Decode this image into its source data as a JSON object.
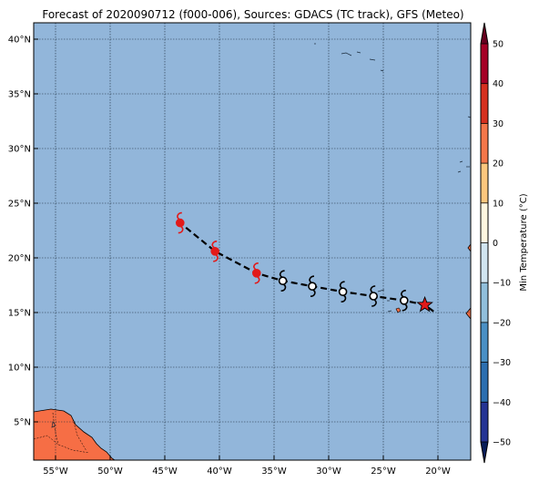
{
  "title": "Forecast of 2020090712 (f000-006), Sources: GDACS (TC track), GFS (Meteo)",
  "map": {
    "lon_range": [
      -57,
      -17
    ],
    "lat_range": [
      1.5,
      41.5
    ],
    "lon_ticks": [
      {
        "value": -55,
        "label": "55°W"
      },
      {
        "value": -50,
        "label": "50°W"
      },
      {
        "value": -45,
        "label": "45°W"
      },
      {
        "value": -40,
        "label": "40°W"
      },
      {
        "value": -35,
        "label": "35°W"
      },
      {
        "value": -30,
        "label": "30°W"
      },
      {
        "value": -25,
        "label": "25°W"
      },
      {
        "value": -20,
        "label": "20°W"
      }
    ],
    "lat_ticks": [
      {
        "value": 5,
        "label": "5°N"
      },
      {
        "value": 10,
        "label": "10°N"
      },
      {
        "value": 15,
        "label": "15°N"
      },
      {
        "value": 20,
        "label": "20°N"
      },
      {
        "value": 25,
        "label": "25°N"
      },
      {
        "value": 30,
        "label": "30°N"
      },
      {
        "value": 35,
        "label": "35°N"
      },
      {
        "value": 40,
        "label": "40°N"
      }
    ],
    "grid": true,
    "ocean_color": "#92b6da",
    "land_color": "#f66e45",
    "track": {
      "line_style": "dashed",
      "points": [
        {
          "lon": -20.4,
          "lat": 15.1
        },
        {
          "lon": -21.2,
          "lat": 15.7,
          "symbol": "star",
          "color": "#e21a1a"
        },
        {
          "lon": -23.1,
          "lat": 16.1,
          "symbol": "depression",
          "color": "#000000"
        },
        {
          "lon": -25.9,
          "lat": 16.5,
          "symbol": "depression",
          "color": "#000000"
        },
        {
          "lon": -28.7,
          "lat": 16.9,
          "symbol": "depression",
          "color": "#000000"
        },
        {
          "lon": -31.5,
          "lat": 17.4,
          "symbol": "depression",
          "color": "#000000"
        },
        {
          "lon": -34.2,
          "lat": 17.9,
          "symbol": "depression",
          "color": "#000000"
        },
        {
          "lon": -36.6,
          "lat": 18.6,
          "symbol": "storm",
          "color": "#e21a1a"
        },
        {
          "lon": -40.4,
          "lat": 20.6,
          "symbol": "storm",
          "color": "#e21a1a"
        },
        {
          "lon": -43.6,
          "lat": 23.2,
          "symbol": "storm",
          "color": "#e21a1a"
        }
      ]
    }
  },
  "colorbar": {
    "label": "Min Temperature (°C)",
    "min": -55,
    "max": 55,
    "tick_values": [
      -50,
      -40,
      -30,
      -20,
      -10,
      0,
      10,
      20,
      30,
      40,
      50
    ],
    "tick_labels": [
      "−50",
      "−40",
      "−30",
      "−20",
      "−10",
      "0",
      "10",
      "20",
      "30",
      "40",
      "50"
    ],
    "segments": [
      {
        "from": -55,
        "to": -50,
        "color": "#081d58"
      },
      {
        "from": -50,
        "to": -40,
        "color": "#253494"
      },
      {
        "from": -40,
        "to": -30,
        "color": "#2c6fb0"
      },
      {
        "from": -30,
        "to": -20,
        "color": "#4a90c5"
      },
      {
        "from": -20,
        "to": -10,
        "color": "#91bfdb"
      },
      {
        "from": -10,
        "to": 0,
        "color": "#d1e5f0"
      },
      {
        "from": 0,
        "to": 10,
        "color": "#fff7e0"
      },
      {
        "from": 10,
        "to": 20,
        "color": "#fdc77e"
      },
      {
        "from": 20,
        "to": 30,
        "color": "#f4774a"
      },
      {
        "from": 30,
        "to": 40,
        "color": "#d6301f"
      },
      {
        "from": 40,
        "to": 50,
        "color": "#a50026"
      },
      {
        "from": 50,
        "to": 55,
        "color": "#67001f"
      }
    ]
  }
}
